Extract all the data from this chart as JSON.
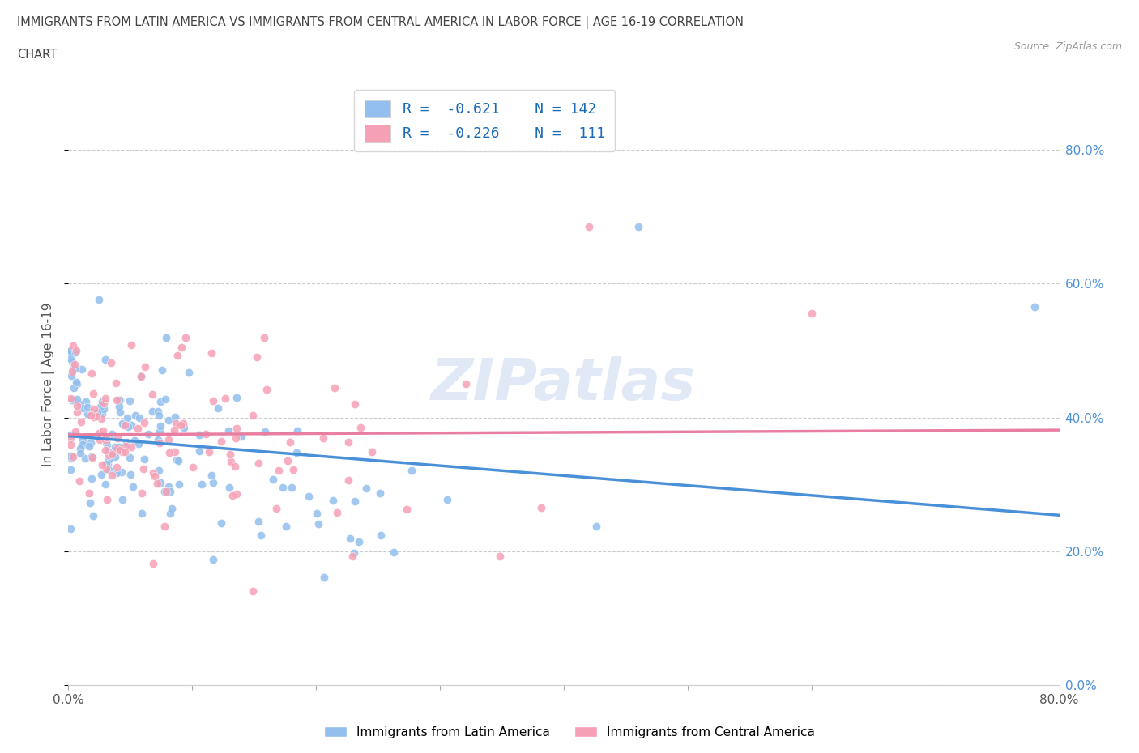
{
  "title_line1": "IMMIGRANTS FROM LATIN AMERICA VS IMMIGRANTS FROM CENTRAL AMERICA IN LABOR FORCE | AGE 16-19 CORRELATION",
  "title_line2": "CHART",
  "source_text": "Source: ZipAtlas.com",
  "xlabel_bottom": "Immigrants from Latin America",
  "ylabel": "In Labor Force | Age 16-19",
  "xlim": [
    0.0,
    0.8
  ],
  "ylim": [
    0.0,
    0.9
  ],
  "ytick_labels": [
    "0.0%",
    "20.0%",
    "40.0%",
    "60.0%",
    "80.0%"
  ],
  "ytick_vals": [
    0.0,
    0.2,
    0.4,
    0.6,
    0.8
  ],
  "xtick_positions": [
    0.0,
    0.1,
    0.2,
    0.3,
    0.4,
    0.5,
    0.6,
    0.7,
    0.8
  ],
  "xtick_labels": [
    "0.0%",
    "",
    "",
    "",
    "",
    "",
    "",
    "",
    "80.0%"
  ],
  "watermark": "ZIPatlas",
  "blue_color": "#92BFED",
  "pink_color": "#F5A0B5",
  "blue_line_color": "#4A90D9",
  "pink_line_color": "#E87FA0",
  "right_tick_color": "#4A90D9",
  "legend_R_color": "#1a6bb5",
  "R_blue": -0.621,
  "N_blue": 142,
  "R_pink": -0.226,
  "N_pink": 111,
  "legend_label1": "R =  -0.621    N = 142",
  "legend_label2": "R =  -0.226    N =  111",
  "bottom_legend_label1": "Immigrants from Latin America",
  "bottom_legend_label2": "Immigrants from Central America"
}
